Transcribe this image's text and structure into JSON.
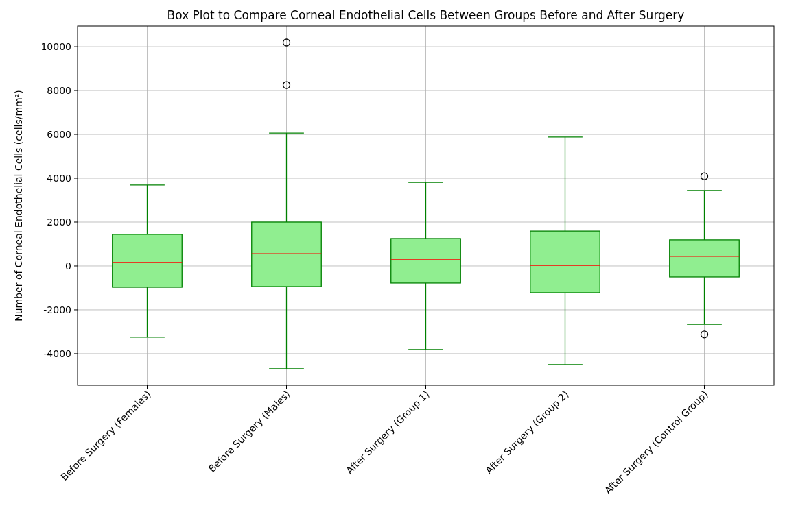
{
  "chart_data": {
    "type": "box",
    "title": "Box Plot to Compare Corneal Endothelial Cells Between Groups Before and After Surgery",
    "ylabel": "Number of Corneal Endothelial Cells (cells/mm²)",
    "categories": [
      "Before Surgery (Females)",
      "Before Surgery (Males)",
      "After Surgery (Group 1)",
      "After Surgery (Group 2)",
      "After Surgery (Control Group)"
    ],
    "boxes": [
      {
        "low": -3250,
        "q1": -970,
        "median": 160,
        "q3": 1440,
        "high": 3690
      },
      {
        "low": -4690,
        "q1": -940,
        "median": 560,
        "q3": 2000,
        "high": 6060,
        "outliers": [
          10190,
          8250
        ]
      },
      {
        "low": -3810,
        "q1": -780,
        "median": 280,
        "q3": 1250,
        "high": 3810
      },
      {
        "low": -4500,
        "q1": -1220,
        "median": 30,
        "q3": 1590,
        "high": 5880
      },
      {
        "low": -2660,
        "q1": -500,
        "median": 440,
        "q3": 1190,
        "high": 3440,
        "outliers": [
          4090,
          -3120
        ]
      }
    ],
    "color": "#90ee90",
    "ylim": [
      -5440,
      10940
    ],
    "yticks": [
      -4000,
      -2000,
      0,
      2000,
      4000,
      6000,
      8000,
      10000
    ],
    "grid": true
  }
}
